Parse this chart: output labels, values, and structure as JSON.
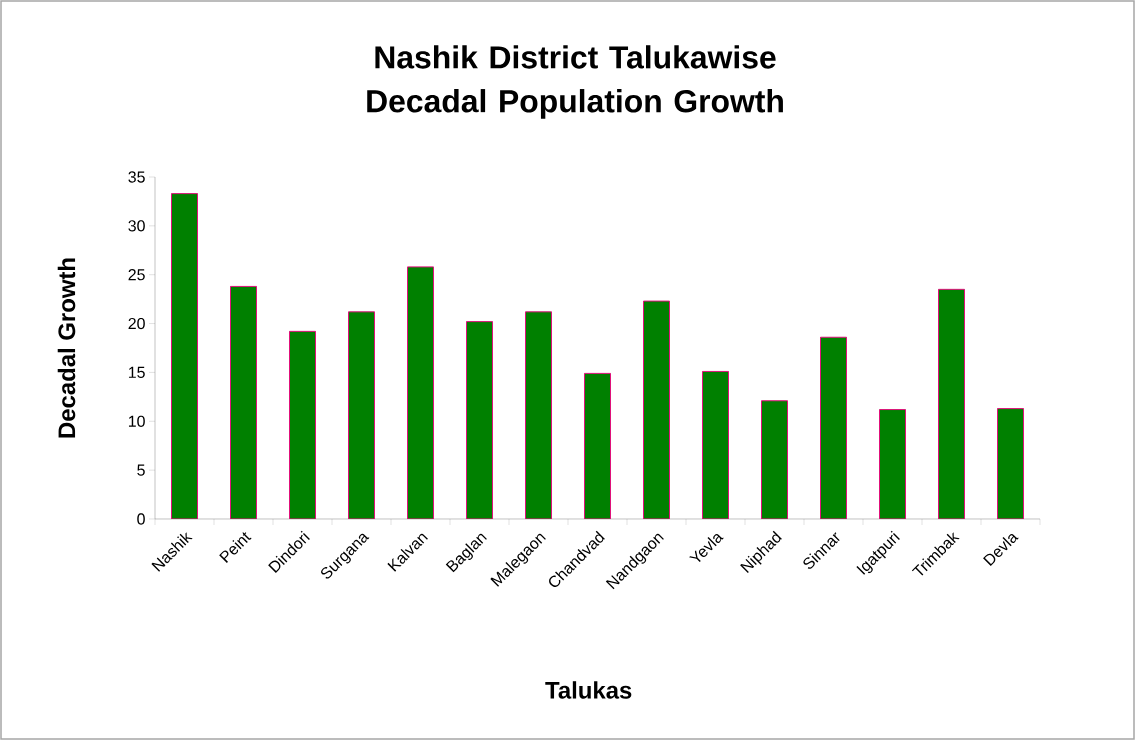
{
  "chart_data": {
    "type": "bar",
    "title": "Nashik District Talukawise Decadal Population Growth",
    "xlabel": "Talukas",
    "ylabel": "Decadal Growth",
    "categories": [
      "Nashik",
      "Peint",
      "Dindori",
      "Surgana",
      "Kalvan",
      "Baglan",
      "Malegaon",
      "Chandvad",
      "Nandgaon",
      "Yevla",
      "Niphad",
      "Sinnar",
      "Igatpuri",
      "Trimbak",
      "Devla"
    ],
    "values": [
      33.3,
      23.8,
      19.2,
      21.2,
      25.8,
      20.2,
      21.2,
      14.9,
      22.3,
      15.1,
      12.1,
      18.6,
      11.2,
      23.5,
      11.3
    ],
    "color": "#008000",
    "ylim": [
      0,
      35
    ],
    "yticks": [
      0,
      5,
      10,
      15,
      20,
      25,
      30,
      35
    ],
    "grid": false
  }
}
